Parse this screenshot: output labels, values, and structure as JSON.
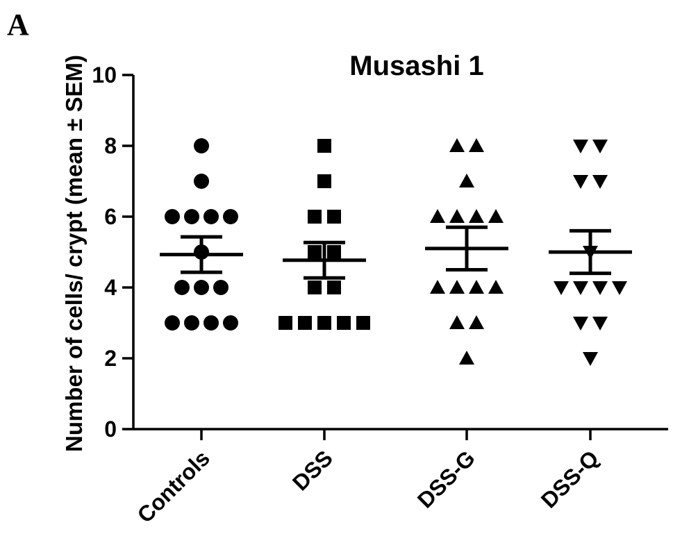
{
  "panel_label": "A",
  "chart_data": {
    "type": "scatter",
    "title": "Musashi 1",
    "xlabel": "",
    "ylabel": "Number of cells/ crypt (mean ± SEM)",
    "ylim": [
      0,
      10
    ],
    "yticks": [
      0,
      2,
      4,
      6,
      8,
      10
    ],
    "categories": [
      "Controls",
      "DSS",
      "DSS-G",
      "DSS-Q"
    ],
    "grid": false,
    "legend": "none",
    "series": [
      {
        "category": "Controls",
        "marker": "circle",
        "points": [
          8,
          7,
          6,
          6,
          6,
          6,
          5,
          4,
          4,
          4,
          3,
          3,
          3,
          3
        ],
        "mean": 4.93,
        "sem_low": 4.43,
        "sem_high": 5.43
      },
      {
        "category": "DSS",
        "marker": "square",
        "points": [
          8,
          7,
          6,
          6,
          5,
          5,
          4,
          4,
          3,
          3,
          3,
          3,
          3
        ],
        "mean": 4.77,
        "sem_low": 4.27,
        "sem_high": 5.27
      },
      {
        "category": "DSS-G",
        "marker": "triangle-up",
        "points": [
          8,
          8,
          7,
          6,
          6,
          6,
          6,
          4,
          4,
          4,
          4,
          3,
          3,
          2
        ],
        "mean": 5.1,
        "sem_low": 4.5,
        "sem_high": 5.7
      },
      {
        "category": "DSS-Q",
        "marker": "triangle-down",
        "points": [
          8,
          8,
          7,
          7,
          5,
          4,
          4,
          4,
          4,
          3,
          3,
          2
        ],
        "mean": 5.0,
        "sem_low": 4.4,
        "sem_high": 5.6
      }
    ]
  }
}
